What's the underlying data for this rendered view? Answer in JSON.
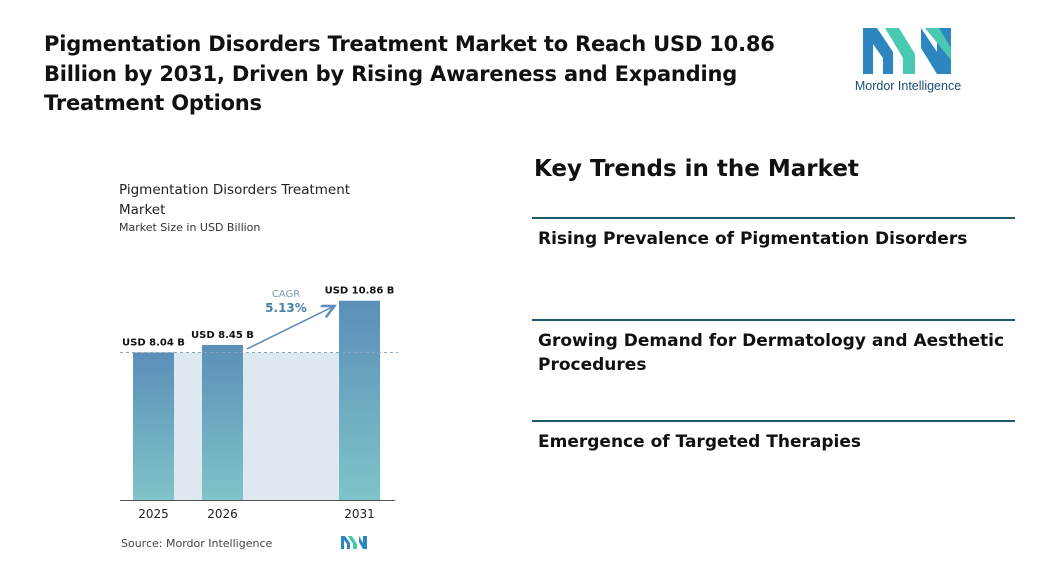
{
  "headline": "Pigmentation Disorders Treatment Market to Reach USD 10.86 Billion by 2031, Driven by Rising Awareness and Expanding Treatment Options",
  "logo": {
    "word1": "Mordor",
    "word2": " Intelligence",
    "icon": "mordor-intelligence-logo",
    "colors": [
      "#2e86c1",
      "#48c9b0"
    ]
  },
  "chart_data": {
    "type": "bar",
    "title": "Pigmentation Disorders Treatment Market",
    "subtitle": "Market Size in USD Billion",
    "categories": [
      "2025",
      "2026",
      "2031"
    ],
    "values": [
      8.04,
      8.45,
      10.86
    ],
    "data_labels": [
      "USD 8.04 B",
      "USD 8.45 B",
      "USD 10.86 B"
    ],
    "cagr_label": "CAGR",
    "cagr_value": "5.13%",
    "reference_line": 8.04,
    "grid": false,
    "colors": {
      "bar_top": "#5b8fb9",
      "bar_bottom": "#7fc4c8",
      "band": "#dde8f0",
      "arrow": "#5b8fb9",
      "cagr_text": "#4a7fa8"
    }
  },
  "source": "Source:  Mordor Intelligence",
  "trends": {
    "title": "Key Trends in the Market",
    "items": [
      "Rising Prevalence of Pigmentation Disorders",
      "Growing Demand for Dermatology and Aesthetic Procedures",
      "Emergence of Targeted Therapies"
    ],
    "divider_color": "#1f5a6b"
  }
}
